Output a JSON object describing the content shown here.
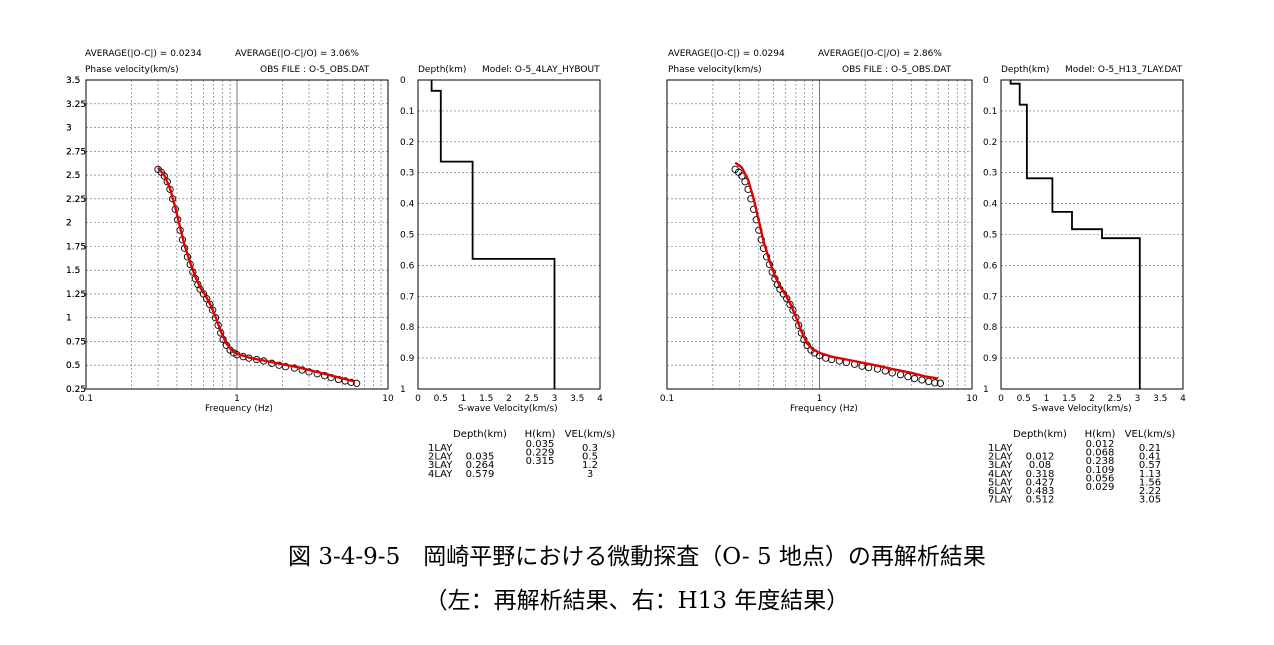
{
  "caption": {
    "line1": "図 3-4-9-5　岡崎平野における微動探査（O- 5 地点）の再解析結果",
    "line2": "（左：再解析結果、右：H13 年度結果）"
  },
  "chart_data": [
    {
      "type": "scatter",
      "header": {
        "avg_abs": "AVERAGE(|O-C|) = 0.0234",
        "avg_rel": "AVERAGE(|O-C|/O) = 3.06%",
        "phase_label": "Phase velocity(km/s)",
        "obs_file": "OBS FILE : O-5_OBS.DAT"
      },
      "xlabel": "Frequency (Hz)",
      "ylabel": "",
      "x_scale": "log",
      "xlim": [
        0.1,
        10
      ],
      "ylim": [
        0.25,
        3.5
      ],
      "x_ticks": [
        "0.1",
        "1",
        "10"
      ],
      "y_ticks": [
        "0.25",
        "0.5",
        "0.75",
        "1",
        "1.25",
        "1.5",
        "1.75",
        "2",
        "2.25",
        "2.5",
        "2.75",
        "3",
        "3.25",
        "3.5"
      ],
      "grid": true,
      "series": [
        {
          "kind": "observed",
          "color": "#000000",
          "points": [
            [
              0.3,
              2.56
            ],
            [
              0.315,
              2.53
            ],
            [
              0.33,
              2.49
            ],
            [
              0.345,
              2.43
            ],
            [
              0.36,
              2.35
            ],
            [
              0.375,
              2.25
            ],
            [
              0.39,
              2.14
            ],
            [
              0.405,
              2.03
            ],
            [
              0.42,
              1.92
            ],
            [
              0.435,
              1.82
            ],
            [
              0.45,
              1.73
            ],
            [
              0.47,
              1.64
            ],
            [
              0.49,
              1.56
            ],
            [
              0.51,
              1.48
            ],
            [
              0.53,
              1.41
            ],
            [
              0.55,
              1.35
            ],
            [
              0.57,
              1.3
            ],
            [
              0.6,
              1.25
            ],
            [
              0.63,
              1.2
            ],
            [
              0.66,
              1.14
            ],
            [
              0.69,
              1.08
            ],
            [
              0.72,
              1.0
            ],
            [
              0.75,
              0.92
            ],
            [
              0.78,
              0.84
            ],
            [
              0.81,
              0.77
            ],
            [
              0.85,
              0.71
            ],
            [
              0.9,
              0.66
            ],
            [
              0.95,
              0.63
            ],
            [
              1.0,
              0.61
            ],
            [
              1.1,
              0.59
            ],
            [
              1.2,
              0.575
            ],
            [
              1.35,
              0.56
            ],
            [
              1.5,
              0.545
            ],
            [
              1.7,
              0.52
            ],
            [
              1.9,
              0.5
            ],
            [
              2.1,
              0.485
            ],
            [
              2.4,
              0.47
            ],
            [
              2.7,
              0.45
            ],
            [
              3.0,
              0.43
            ],
            [
              3.4,
              0.41
            ],
            [
              3.8,
              0.39
            ],
            [
              4.2,
              0.37
            ],
            [
              4.7,
              0.35
            ],
            [
              5.2,
              0.335
            ],
            [
              5.7,
              0.32
            ],
            [
              6.2,
              0.31
            ]
          ]
        },
        {
          "kind": "calculated",
          "color": "#e00000",
          "points": [
            [
              0.3,
              2.58
            ],
            [
              0.33,
              2.5
            ],
            [
              0.36,
              2.36
            ],
            [
              0.39,
              2.16
            ],
            [
              0.42,
              1.95
            ],
            [
              0.45,
              1.76
            ],
            [
              0.49,
              1.58
            ],
            [
              0.53,
              1.43
            ],
            [
              0.57,
              1.32
            ],
            [
              0.62,
              1.23
            ],
            [
              0.67,
              1.13
            ],
            [
              0.72,
              1.01
            ],
            [
              0.78,
              0.86
            ],
            [
              0.85,
              0.73
            ],
            [
              0.92,
              0.66
            ],
            [
              1.0,
              0.62
            ],
            [
              1.2,
              0.58
            ],
            [
              1.5,
              0.55
            ],
            [
              2.0,
              0.51
            ],
            [
              2.5,
              0.48
            ],
            [
              3.0,
              0.45
            ],
            [
              4.0,
              0.4
            ],
            [
              5.0,
              0.36
            ],
            [
              6.0,
              0.33
            ]
          ]
        }
      ]
    },
    {
      "type": "line",
      "header": {
        "depth_label": "Depth(km)",
        "model": "Model: O-5_4LAY_HYBOUT"
      },
      "xlabel": "S-wave Velocity(km/s)",
      "xlim": [
        0,
        4
      ],
      "ylim": [
        0,
        1
      ],
      "x_ticks": [
        "0",
        "0.5",
        "1",
        "1.5",
        "2",
        "2.5",
        "3",
        "3.5",
        "4"
      ],
      "y_ticks": [
        "0",
        "0.1",
        "0.2",
        "0.3",
        "0.4",
        "0.5",
        "0.6",
        "0.7",
        "0.8",
        "0.9",
        "1"
      ],
      "grid": true,
      "profile": {
        "depth_tops": [
          0,
          0.035,
          0.264,
          0.579
        ],
        "velocities": [
          0.3,
          0.5,
          1.2,
          3
        ]
      },
      "table": {
        "headers": [
          "Depth(km)",
          "H(km)",
          "VEL(km/s)"
        ],
        "rows": [
          {
            "layer": "1LAY",
            "depth": "",
            "h": "0.035",
            "vel": "0.3"
          },
          {
            "layer": "2LAY",
            "depth": "0.035",
            "h": "0.229",
            "vel": "0.5"
          },
          {
            "layer": "3LAY",
            "depth": "0.264",
            "h": "0.315",
            "vel": "1.2"
          },
          {
            "layer": "4LAY",
            "depth": "0.579",
            "h": "",
            "vel": "3"
          }
        ]
      }
    },
    {
      "type": "scatter",
      "header": {
        "avg_abs": "AVERAGE(|O-C|) = 0.0294",
        "avg_rel": "AVERAGE(|O-C|/O) = 2.86%",
        "phase_label": "Phase velocity(km/s)",
        "obs_file": "OBS FILE : O-5_OBS.DAT"
      },
      "xlabel": "Frequency (Hz)",
      "ylabel": "",
      "x_scale": "log",
      "xlim": [
        0.1,
        10
      ],
      "ylim": [
        0.25,
        3.5
      ],
      "x_ticks": [
        "0.1",
        "1",
        "10"
      ],
      "y_ticks": [
        "0.25",
        "0.5",
        "0.75",
        "1",
        "1.25",
        "1.5",
        "1.75",
        "2",
        "2.25",
        "2.5",
        "2.75",
        "3",
        "3.25",
        "3.5"
      ],
      "grid": true,
      "series": [
        {
          "kind": "observed",
          "color": "#000000",
          "points": [
            [
              0.28,
              2.56
            ],
            [
              0.295,
              2.53
            ],
            [
              0.31,
              2.49
            ],
            [
              0.325,
              2.43
            ],
            [
              0.34,
              2.35
            ],
            [
              0.355,
              2.25
            ],
            [
              0.37,
              2.14
            ],
            [
              0.385,
              2.03
            ],
            [
              0.4,
              1.92
            ],
            [
              0.415,
              1.82
            ],
            [
              0.43,
              1.73
            ],
            [
              0.45,
              1.64
            ],
            [
              0.47,
              1.56
            ],
            [
              0.49,
              1.48
            ],
            [
              0.51,
              1.41
            ],
            [
              0.53,
              1.35
            ],
            [
              0.55,
              1.3
            ],
            [
              0.58,
              1.25
            ],
            [
              0.61,
              1.2
            ],
            [
              0.64,
              1.14
            ],
            [
              0.67,
              1.08
            ],
            [
              0.7,
              1.0
            ],
            [
              0.73,
              0.92
            ],
            [
              0.76,
              0.84
            ],
            [
              0.79,
              0.77
            ],
            [
              0.83,
              0.71
            ],
            [
              0.88,
              0.66
            ],
            [
              0.93,
              0.63
            ],
            [
              1.0,
              0.6
            ],
            [
              1.1,
              0.575
            ],
            [
              1.2,
              0.56
            ],
            [
              1.35,
              0.545
            ],
            [
              1.5,
              0.53
            ],
            [
              1.7,
              0.51
            ],
            [
              1.9,
              0.49
            ],
            [
              2.1,
              0.475
            ],
            [
              2.4,
              0.46
            ],
            [
              2.7,
              0.44
            ],
            [
              3.0,
              0.42
            ],
            [
              3.4,
              0.4
            ],
            [
              3.8,
              0.38
            ],
            [
              4.2,
              0.36
            ],
            [
              4.7,
              0.345
            ],
            [
              5.2,
              0.33
            ],
            [
              5.7,
              0.315
            ],
            [
              6.2,
              0.31
            ]
          ]
        },
        {
          "kind": "calculated",
          "color": "#e00000",
          "points": [
            [
              0.28,
              2.63
            ],
            [
              0.31,
              2.58
            ],
            [
              0.34,
              2.45
            ],
            [
              0.37,
              2.25
            ],
            [
              0.4,
              2.02
            ],
            [
              0.43,
              1.8
            ],
            [
              0.47,
              1.6
            ],
            [
              0.51,
              1.44
            ],
            [
              0.55,
              1.33
            ],
            [
              0.6,
              1.24
            ],
            [
              0.65,
              1.13
            ],
            [
              0.7,
              1.01
            ],
            [
              0.76,
              0.86
            ],
            [
              0.83,
              0.73
            ],
            [
              0.9,
              0.67
            ],
            [
              1.0,
              0.63
            ],
            [
              1.2,
              0.59
            ],
            [
              1.5,
              0.56
            ],
            [
              2.0,
              0.52
            ],
            [
              2.5,
              0.49
            ],
            [
              3.0,
              0.46
            ],
            [
              4.0,
              0.42
            ],
            [
              5.0,
              0.38
            ],
            [
              6.0,
              0.36
            ]
          ]
        }
      ]
    },
    {
      "type": "line",
      "header": {
        "depth_label": "Depth(km)",
        "model": "Model: O-5_H13_7LAY.DAT"
      },
      "xlabel": "S-wave Velocity(km/s)",
      "xlim": [
        0,
        4
      ],
      "ylim": [
        0,
        1
      ],
      "x_ticks": [
        "0",
        "0.5",
        "1",
        "1.5",
        "2",
        "2.5",
        "3",
        "3.5",
        "4"
      ],
      "y_ticks": [
        "0",
        "0.1",
        "0.2",
        "0.3",
        "0.4",
        "0.5",
        "0.6",
        "0.7",
        "0.8",
        "0.9",
        "1"
      ],
      "grid": true,
      "profile": {
        "depth_tops": [
          0,
          0.012,
          0.08,
          0.318,
          0.427,
          0.483,
          0.512
        ],
        "velocities": [
          0.21,
          0.41,
          0.57,
          1.13,
          1.56,
          2.22,
          3.05
        ]
      },
      "table": {
        "headers": [
          "Depth(km)",
          "H(km)",
          "VEL(km/s)"
        ],
        "rows": [
          {
            "layer": "1LAY",
            "depth": "",
            "h": "0.012",
            "vel": "0.21"
          },
          {
            "layer": "2LAY",
            "depth": "0.012",
            "h": "0.068",
            "vel": "0.41"
          },
          {
            "layer": "3LAY",
            "depth": "0.08",
            "h": "0.238",
            "vel": "0.57"
          },
          {
            "layer": "4LAY",
            "depth": "0.318",
            "h": "0.109",
            "vel": "1.13"
          },
          {
            "layer": "5LAY",
            "depth": "0.427",
            "h": "0.056",
            "vel": "1.56"
          },
          {
            "layer": "6LAY",
            "depth": "0.483",
            "h": "0.029",
            "vel": "2.22"
          },
          {
            "layer": "7LAY",
            "depth": "0.512",
            "h": "",
            "vel": "3.05"
          }
        ]
      }
    }
  ]
}
